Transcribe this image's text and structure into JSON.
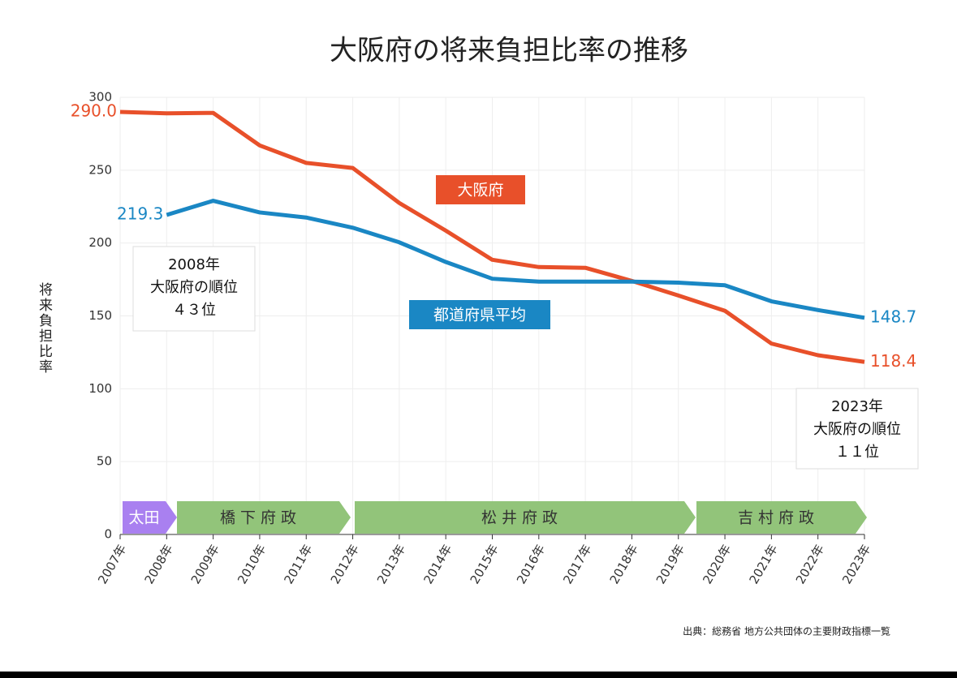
{
  "chart_data": {
    "type": "line",
    "title": "大阪府の将来負担比率の推移",
    "y_label": "将来負担比率",
    "source": "出典：総務省 地方公共団体の主要財政指標一覧",
    "categories": [
      "2007年",
      "2008年",
      "2009年",
      "2010年",
      "2011年",
      "2012年",
      "2013年",
      "2014年",
      "2015年",
      "2016年",
      "2017年",
      "2018年",
      "2019年",
      "2020年",
      "2021年",
      "2022年",
      "2023年"
    ],
    "series": [
      {
        "name": "大阪府",
        "color": "#e8502a",
        "values": [
          290.0,
          289,
          289.3,
          267,
          255,
          251.5,
          227.5,
          208.5,
          188.5,
          183.5,
          183,
          174,
          164,
          153.5,
          131,
          123,
          118.4
        ],
        "value_labels": [
          "290.0",
          null,
          null,
          null,
          null,
          null,
          null,
          null,
          null,
          null,
          null,
          null,
          null,
          null,
          null,
          null,
          "118.4"
        ]
      },
      {
        "name": "都道府県平均",
        "color": "#1a87c4",
        "values": [
          null,
          219.3,
          229,
          221,
          217.5,
          210.5,
          200.5,
          187,
          175.5,
          173.5,
          173.5,
          173.5,
          172.8,
          171,
          160,
          154,
          148.7
        ],
        "value_labels": [
          null,
          "219.3",
          null,
          null,
          null,
          null,
          null,
          null,
          null,
          null,
          null,
          null,
          null,
          null,
          null,
          null,
          "148.7"
        ]
      }
    ],
    "ylim": [
      0,
      300
    ],
    "yticks": [
      0,
      50,
      100,
      150,
      200,
      250,
      300
    ],
    "grid": true,
    "annotations": [
      {
        "lines": [
          "2008年",
          "大阪府の順位",
          "４３位"
        ]
      },
      {
        "lines": [
          "2023年",
          "大阪府の順位",
          "１１位"
        ]
      }
    ],
    "eras": [
      "太田",
      "橋 下 府 政",
      "松 井 府 政",
      "吉 村 府 政"
    ]
  }
}
